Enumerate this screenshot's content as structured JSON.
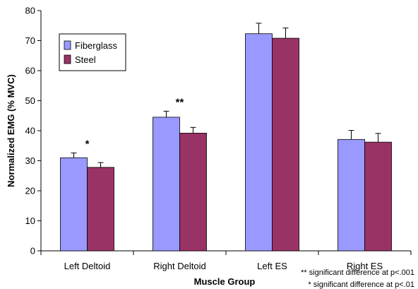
{
  "chart_data": {
    "type": "bar",
    "categories": [
      "Left Deltoid",
      "Right Deltoid",
      "Left ES",
      "Right ES"
    ],
    "series": [
      {
        "name": "Fiberglass",
        "color": "#9999ff",
        "values": [
          31,
          44.5,
          72.3,
          37.1
        ],
        "errors": [
          1.6,
          2.0,
          3.5,
          3.0
        ]
      },
      {
        "name": "Steel",
        "color": "#993366",
        "values": [
          27.8,
          39.2,
          70.8,
          36.2
        ],
        "errors": [
          1.6,
          1.9,
          3.4,
          2.9
        ]
      }
    ],
    "xlabel": "Muscle Group",
    "ylabel": "Normalized EMG  (% MVC)",
    "ylim": [
      0,
      80
    ],
    "yticks": [
      0,
      10,
      20,
      30,
      40,
      50,
      60,
      70,
      80
    ],
    "grid": false,
    "legend_position": "top-left",
    "significance_marks": [
      "*",
      "**",
      "",
      ""
    ],
    "notes": [
      "** significant difference at p<.001",
      "* significant difference at p<.01"
    ]
  }
}
